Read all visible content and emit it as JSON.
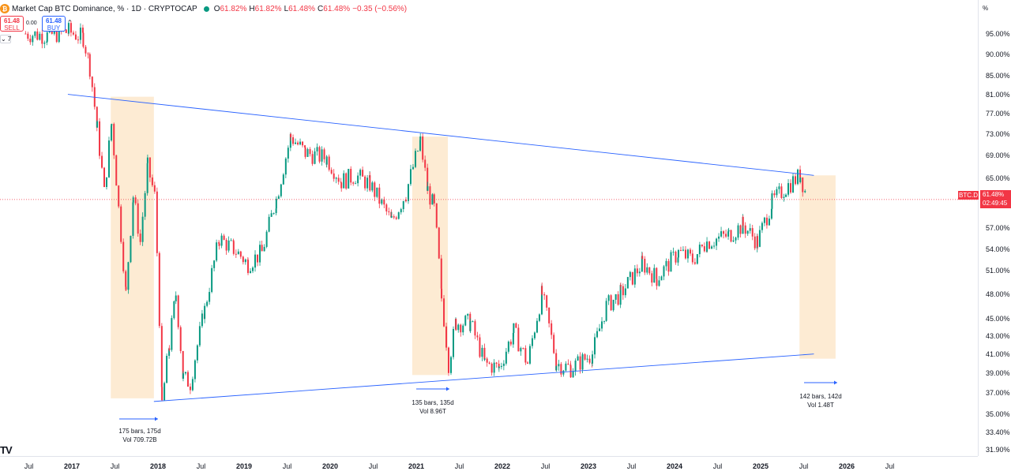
{
  "header": {
    "logo_glyph": "₿",
    "title": "Market Cap BTC Dominance, % · 1D · CRYPTOCAP",
    "ohlc": [
      {
        "label": "O",
        "value": "61.82%"
      },
      {
        "label": "H",
        "value": "61.82%"
      },
      {
        "label": "L",
        "value": "61.48%"
      },
      {
        "label": "C",
        "value": "61.48%"
      }
    ],
    "change": "−0.35 (−0.56%)",
    "status_color": "#089981"
  },
  "trade": {
    "sell_price": "61.48",
    "sell_label": "SELL",
    "spread": "0.00",
    "buy_price": "61.48",
    "buy_label": "BUY",
    "caret": "⌃",
    "collapse_icon": "chevron-down-icon",
    "indicator_count": "7"
  },
  "axis_mode_label": "%",
  "price_tag": {
    "symbol": "BTC.D",
    "value": "61.48%",
    "countdown": "02:49:45",
    "color": "#f23645"
  },
  "y_ticks": [
    "95.00%",
    "90.00%",
    "85.00%",
    "81.00%",
    "77.00%",
    "73.00%",
    "69.00%",
    "65.00%",
    "57.00%",
    "54.00%",
    "51.00%",
    "48.00%",
    "45.00%",
    "43.00%",
    "41.00%",
    "39.00%",
    "37.00%",
    "35.00%",
    "33.40%",
    "31.90%"
  ],
  "x_ticks": [
    {
      "label": "Jul",
      "year": false
    },
    {
      "label": "2017",
      "year": true
    },
    {
      "label": "Jul",
      "year": false
    },
    {
      "label": "2018",
      "year": true
    },
    {
      "label": "Jul",
      "year": false
    },
    {
      "label": "2019",
      "year": true
    },
    {
      "label": "Jul",
      "year": false
    },
    {
      "label": "2020",
      "year": true
    },
    {
      "label": "Jul",
      "year": false
    },
    {
      "label": "2021",
      "year": true
    },
    {
      "label": "Jul",
      "year": false
    },
    {
      "label": "2022",
      "year": true
    },
    {
      "label": "Jul",
      "year": false
    },
    {
      "label": "2023",
      "year": true
    },
    {
      "label": "Jul",
      "year": false
    },
    {
      "label": "2024",
      "year": true
    },
    {
      "label": "Jul",
      "year": false
    },
    {
      "label": "2025",
      "year": true
    },
    {
      "label": "Jul",
      "year": false
    },
    {
      "label": "2026",
      "year": true
    },
    {
      "label": "Jul",
      "year": false
    }
  ],
  "annotations": [
    {
      "line1": "175 bars, 175d",
      "line2": "Vol 709.72B"
    },
    {
      "line1": "135 bars, 135d",
      "line2": "Vol 8.96T"
    },
    {
      "line1": "142 bars, 142d",
      "line2": "Vol 1.48T"
    }
  ],
  "watermark_logo": "TV",
  "colors": {
    "up": "#089981",
    "down": "#f23645",
    "trendline": "#2962ff",
    "highlight": "#fdebd3",
    "price_line": "#f23645"
  },
  "chart_data": {
    "type": "line",
    "title": "Market Cap BTC Dominance, % · 1D · CRYPTOCAP",
    "xlabel": "",
    "ylabel": "",
    "scale": "log",
    "ylim": [
      31.9,
      97.5
    ],
    "x": [
      "2016-06",
      "2016-09",
      "2016-12",
      "2017-02",
      "2017-03",
      "2017-04",
      "2017-05",
      "2017-06",
      "2017-07",
      "2017-08",
      "2017-09",
      "2017-10",
      "2017-11",
      "2017-12",
      "2018-01",
      "2018-02",
      "2018-03",
      "2018-04",
      "2018-05",
      "2018-07",
      "2018-09",
      "2018-11",
      "2019-01",
      "2019-03",
      "2019-05",
      "2019-07",
      "2019-09",
      "2019-12",
      "2020-02",
      "2020-04",
      "2020-06",
      "2020-09",
      "2020-11",
      "2021-01",
      "2021-02",
      "2021-03",
      "2021-04",
      "2021-05",
      "2021-06",
      "2021-08",
      "2021-10",
      "2021-12",
      "2022-02",
      "2022-04",
      "2022-06",
      "2022-08",
      "2022-10",
      "2023-01",
      "2023-03",
      "2023-05",
      "2023-08",
      "2023-10",
      "2024-01",
      "2024-03",
      "2024-05",
      "2024-08",
      "2024-10",
      "2024-12",
      "2025-02",
      "2025-04",
      "2025-06",
      "2025-07"
    ],
    "series": [
      {
        "values": [
          95.0,
          94.5,
          95.5,
          94.0,
          87.0,
          74.0,
          62.5,
          75.0,
          60.0,
          48.0,
          62.0,
          55.0,
          67.0,
          62.0,
          36.0,
          42.0,
          48.0,
          38.5,
          38.0,
          46.0,
          55.5,
          54.0,
          52.0,
          53.5,
          61.5,
          72.5,
          69.5,
          68.5,
          64.5,
          65.5,
          64.0,
          58.0,
          62.5,
          71.5,
          63.0,
          60.0,
          47.5,
          40.0,
          44.5,
          44.5,
          40.0,
          39.5,
          43.5,
          40.0,
          48.0,
          40.0,
          39.5,
          41.0,
          46.5,
          48.0,
          52.0,
          50.0,
          53.5,
          52.5,
          55.0,
          56.0,
          57.5,
          55.0,
          61.0,
          63.5,
          65.5,
          61.5
        ]
      }
    ],
    "trendlines": [
      {
        "from": [
          "2016-12",
          81.0
        ],
        "to": [
          "2025-08",
          65.5
        ]
      },
      {
        "from": [
          "2017-12",
          36.2
        ],
        "to": [
          "2025-08",
          41.0
        ]
      }
    ],
    "highlight_ranges": [
      {
        "from": "2017-06",
        "to": "2017-12",
        "ymin": 36.5,
        "ymax": 80.5
      },
      {
        "from": "2020-12",
        "to": "2021-05",
        "ymin": 38.8,
        "ymax": 72.5
      },
      {
        "from": "2025-06",
        "to": "2025-11",
        "ymin": 40.5,
        "ymax": 65.5
      }
    ],
    "last_price": 61.48
  }
}
